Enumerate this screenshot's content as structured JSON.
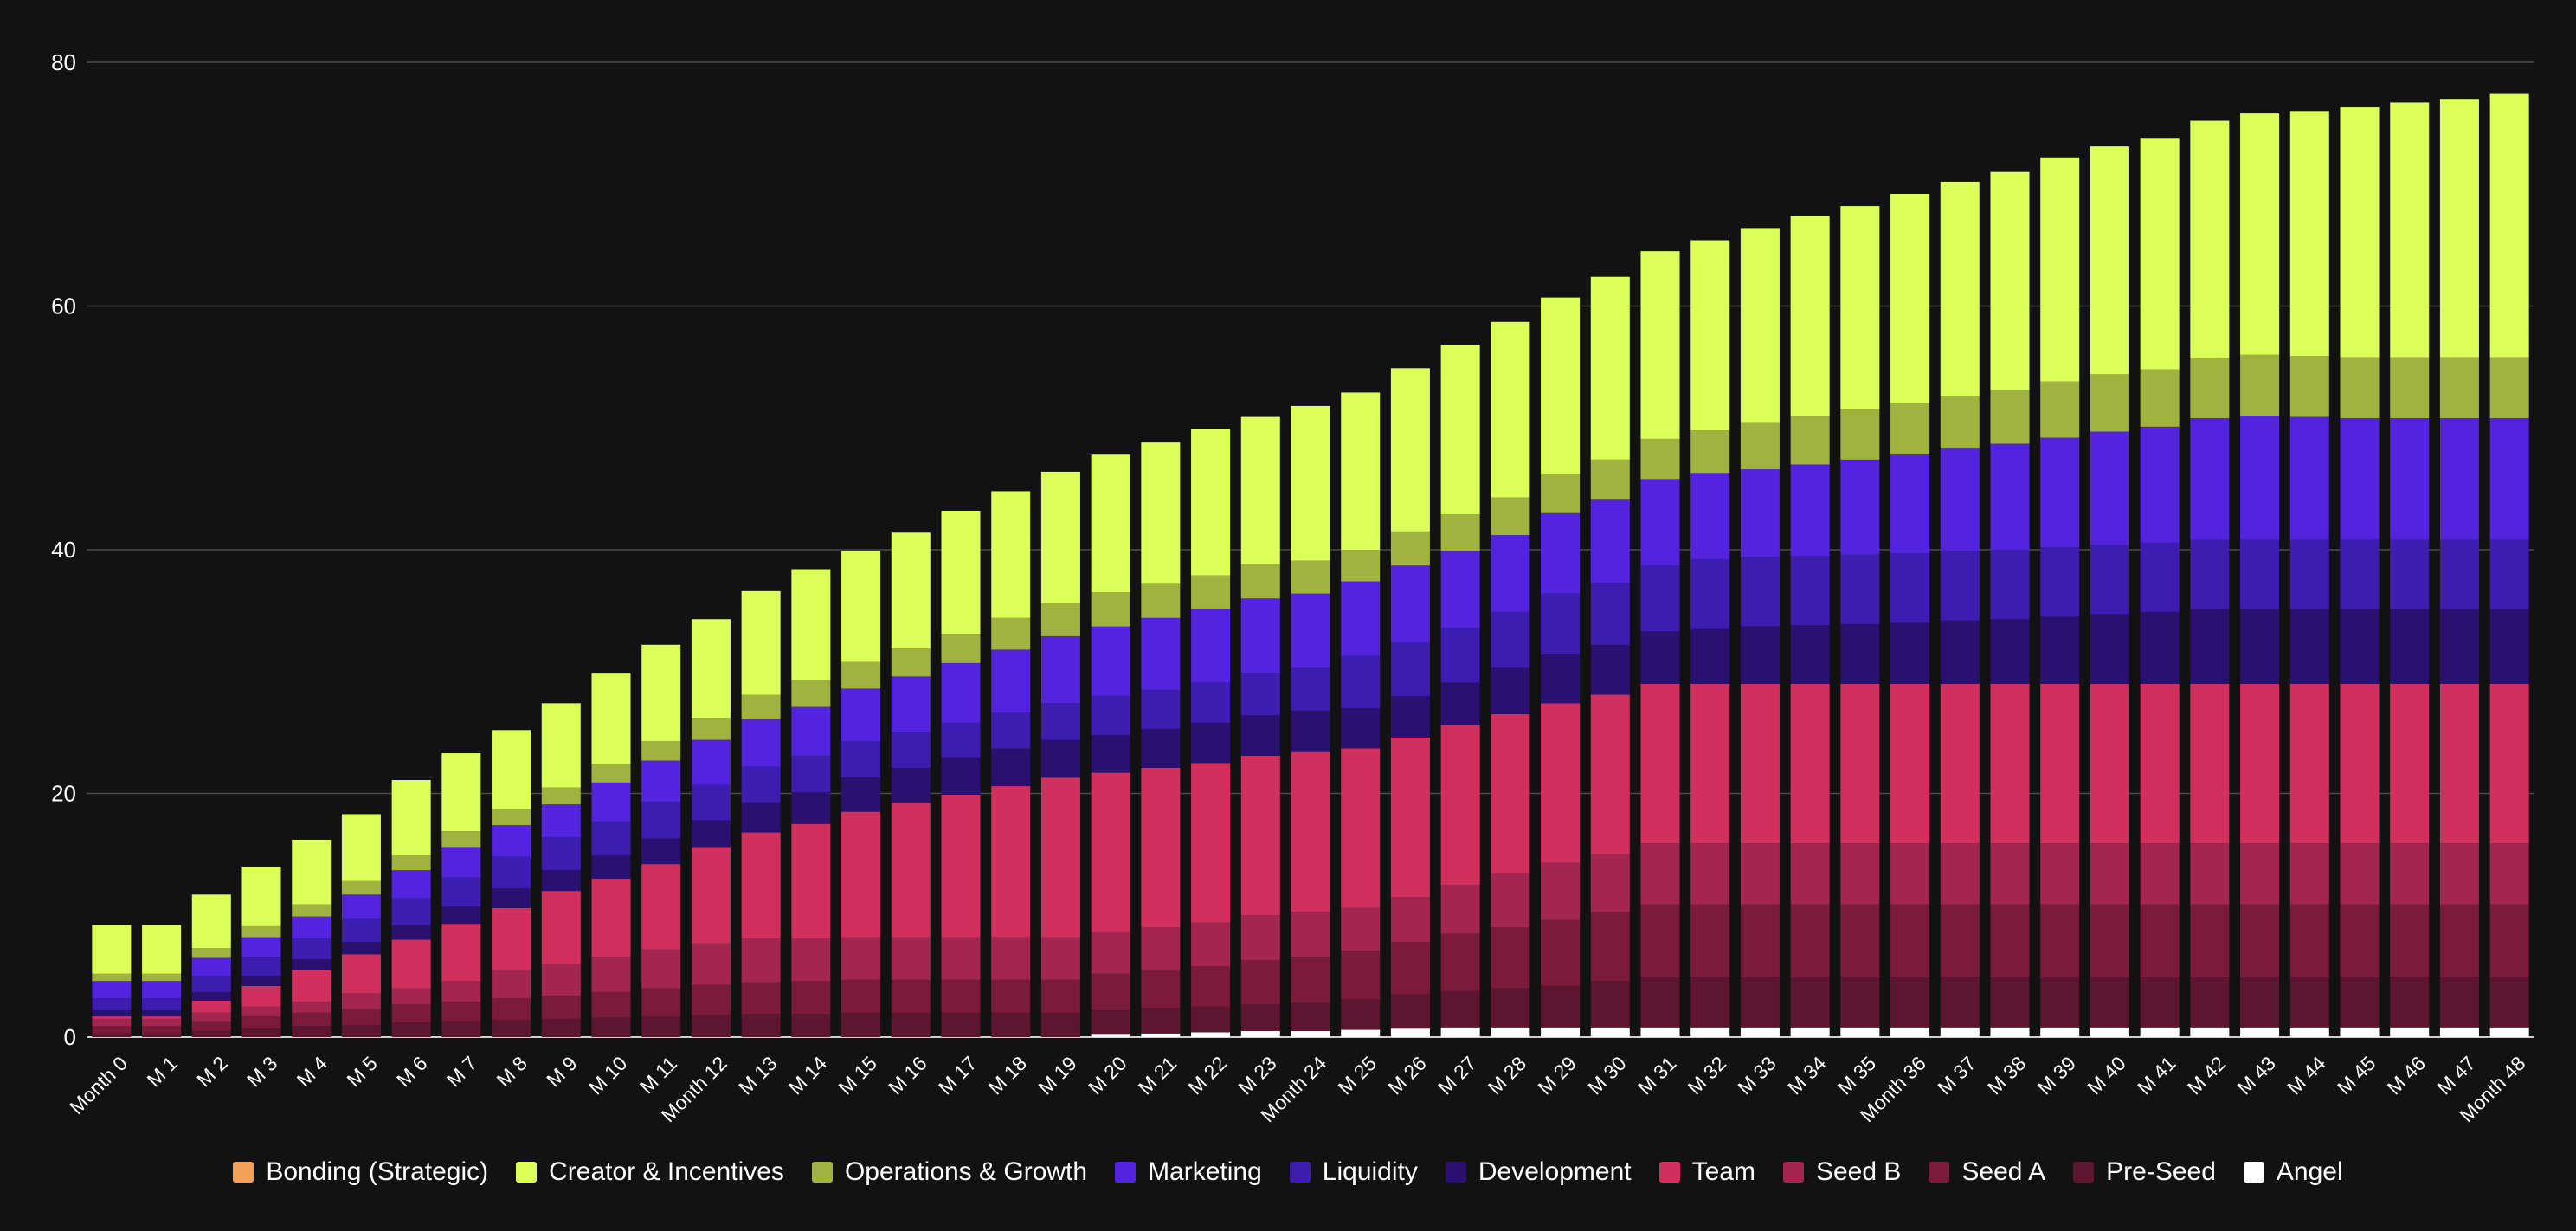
{
  "chart_data": {
    "type": "bar",
    "stacked": true,
    "title": "",
    "xlabel": "",
    "ylabel": "",
    "ylim": [
      0,
      80
    ],
    "yticks": [
      0,
      20,
      40,
      60,
      80
    ],
    "grid": true,
    "legend_placement": "bottom",
    "categories": [
      "Month 0",
      "M 1",
      "M 2",
      "M 3",
      "M 4",
      "M 5",
      "M 6",
      "M 7",
      "M 8",
      "M 9",
      "M 10",
      "M 11",
      "Month 12",
      "M 13",
      "M 14",
      "M 15",
      "M 16",
      "M 17",
      "M 18",
      "M 19",
      "M 20",
      "M 21",
      "M 22",
      "M 23",
      "Month 24",
      "M 25",
      "M 26",
      "M 27",
      "M 28",
      "M 29",
      "M 30",
      "M 31",
      "M 32",
      "M 33",
      "M 34",
      "M 35",
      "Month 36",
      "M 37",
      "M 38",
      "M 39",
      "M 40",
      "M 41",
      "M 42",
      "M 43",
      "M 44",
      "M 45",
      "M 46",
      "M 47",
      "Month 48"
    ],
    "series": [
      {
        "name": "Angel",
        "color": "#ffffff",
        "values": [
          0,
          0,
          0,
          0,
          0,
          0,
          0,
          0,
          0,
          0,
          0,
          0,
          0,
          0,
          0,
          0,
          0,
          0,
          0,
          0,
          0.2,
          0.3,
          0.4,
          0.5,
          0.5,
          0.6,
          0.7,
          0.8,
          0.8,
          0.8,
          0.8,
          0.8,
          0.8,
          0.8,
          0.8,
          0.8,
          0.8,
          0.8,
          0.8,
          0.8,
          0.8,
          0.8,
          0.8,
          0.8,
          0.8,
          0.8,
          0.8,
          0.8,
          0.8
        ]
      },
      {
        "name": "Pre-Seed",
        "color": "#5e1530",
        "values": [
          0.3,
          0.3,
          0.5,
          0.7,
          0.9,
          1.0,
          1.2,
          1.3,
          1.4,
          1.5,
          1.6,
          1.7,
          1.8,
          1.9,
          1.9,
          2.0,
          2.0,
          2.0,
          2.0,
          2.0,
          2.0,
          2.1,
          2.1,
          2.2,
          2.3,
          2.5,
          2.8,
          3.0,
          3.2,
          3.4,
          3.8,
          4.1,
          4.1,
          4.1,
          4.1,
          4.1,
          4.1,
          4.1,
          4.1,
          4.1,
          4.1,
          4.1,
          4.1,
          4.1,
          4.1,
          4.1,
          4.1,
          4.1,
          4.1
        ]
      },
      {
        "name": "Seed A",
        "color": "#7a1b3b",
        "values": [
          0.6,
          0.6,
          0.8,
          1.0,
          1.1,
          1.3,
          1.5,
          1.6,
          1.8,
          1.9,
          2.1,
          2.3,
          2.5,
          2.6,
          2.7,
          2.7,
          2.7,
          2.7,
          2.7,
          2.7,
          3.0,
          3.1,
          3.3,
          3.6,
          3.8,
          4.0,
          4.3,
          4.7,
          5.0,
          5.4,
          5.7,
          6.0,
          6.0,
          6.0,
          6.0,
          6.0,
          6.0,
          6.0,
          6.0,
          6.0,
          6.0,
          6.0,
          6.0,
          6.0,
          6.0,
          6.0,
          6.0,
          6.0,
          6.0
        ]
      },
      {
        "name": "Seed B",
        "color": "#a32650",
        "values": [
          0.6,
          0.6,
          0.7,
          0.8,
          0.9,
          1.3,
          1.3,
          1.7,
          2.3,
          2.6,
          2.9,
          3.2,
          3.4,
          3.6,
          3.5,
          3.5,
          3.5,
          3.5,
          3.5,
          3.5,
          3.4,
          3.5,
          3.6,
          3.7,
          3.7,
          3.5,
          3.7,
          4.0,
          4.4,
          4.7,
          4.7,
          5.0,
          5.0,
          5.0,
          5.0,
          5.0,
          5.0,
          5.0,
          5.0,
          5.0,
          5.0,
          5.0,
          5.0,
          5.0,
          5.0,
          5.0,
          5.0,
          5.0,
          5.0
        ]
      },
      {
        "name": "Team",
        "color": "#d1305e",
        "values": [
          0.2,
          0.2,
          1.0,
          1.7,
          2.6,
          3.2,
          4.0,
          4.7,
          5.1,
          6.0,
          6.4,
          7.0,
          7.9,
          8.7,
          9.4,
          10.3,
          11.0,
          11.7,
          12.4,
          13.1,
          13.1,
          13.1,
          13.1,
          13.1,
          13.1,
          13.1,
          13.1,
          13.1,
          13.1,
          13.1,
          13.1,
          13.1,
          13.1,
          13.1,
          13.1,
          13.1,
          13.1,
          13.1,
          13.1,
          13.1,
          13.1,
          13.1,
          13.1,
          13.1,
          13.1,
          13.1,
          13.1,
          13.1,
          13.1
        ]
      },
      {
        "name": "Development",
        "color": "#2a1070",
        "values": [
          0.5,
          0.5,
          0.7,
          0.8,
          0.9,
          1.0,
          1.2,
          1.4,
          1.6,
          1.7,
          1.9,
          2.1,
          2.2,
          2.4,
          2.6,
          2.8,
          2.9,
          3.0,
          3.1,
          3.1,
          3.1,
          3.2,
          3.3,
          3.3,
          3.4,
          3.3,
          3.4,
          3.5,
          3.8,
          4.0,
          4.1,
          4.3,
          4.5,
          4.7,
          4.8,
          4.9,
          5.0,
          5.2,
          5.3,
          5.5,
          5.7,
          5.9,
          6.1,
          6.1,
          6.1,
          6.1,
          6.1,
          6.1,
          6.1
        ]
      },
      {
        "name": "Liquidity",
        "color": "#3d1db0",
        "values": [
          1.0,
          1.0,
          1.3,
          1.6,
          1.7,
          1.9,
          2.2,
          2.4,
          2.6,
          2.7,
          2.8,
          3.0,
          2.9,
          3.0,
          3.0,
          3.0,
          2.9,
          2.9,
          2.9,
          3.0,
          3.2,
          3.2,
          3.3,
          3.5,
          3.5,
          4.3,
          4.4,
          4.5,
          4.6,
          5.0,
          5.1,
          5.4,
          5.7,
          5.7,
          5.7,
          5.7,
          5.7,
          5.7,
          5.7,
          5.7,
          5.7,
          5.7,
          5.7,
          5.7,
          5.7,
          5.7,
          5.7,
          5.7,
          5.7
        ]
      },
      {
        "name": "Marketing",
        "color": "#5324de",
        "values": [
          1.4,
          1.4,
          1.5,
          1.6,
          1.8,
          2.0,
          2.3,
          2.5,
          2.6,
          2.7,
          3.2,
          3.4,
          3.7,
          3.9,
          4.0,
          4.3,
          4.6,
          4.9,
          5.2,
          5.5,
          5.7,
          5.9,
          6.0,
          6.1,
          6.1,
          6.1,
          6.3,
          6.3,
          6.3,
          6.6,
          6.8,
          7.1,
          7.1,
          7.2,
          7.5,
          7.8,
          8.1,
          8.4,
          8.7,
          9.0,
          9.3,
          9.5,
          10.0,
          10.2,
          10.1,
          10.0,
          10.0,
          10.0,
          10.0
        ]
      },
      {
        "name": "Operations & Growth",
        "color": "#a1b33f",
        "values": [
          0.6,
          0.6,
          0.8,
          0.9,
          1.0,
          1.1,
          1.2,
          1.3,
          1.3,
          1.4,
          1.5,
          1.6,
          1.8,
          2.0,
          2.2,
          2.2,
          2.3,
          2.4,
          2.6,
          2.7,
          2.8,
          2.8,
          2.8,
          2.8,
          2.7,
          2.6,
          2.8,
          3.0,
          3.1,
          3.2,
          3.3,
          3.3,
          3.5,
          3.8,
          4.0,
          4.1,
          4.2,
          4.3,
          4.4,
          4.6,
          4.7,
          4.7,
          4.9,
          5.0,
          5.0,
          5.0,
          5.0,
          5.0,
          5.0
        ]
      },
      {
        "name": "Creator & Incentives",
        "color": "#dcff5a",
        "values": [
          4.0,
          4.0,
          4.4,
          4.9,
          5.3,
          5.5,
          6.2,
          6.4,
          6.5,
          6.9,
          7.5,
          7.9,
          8.1,
          8.5,
          9.1,
          9.1,
          9.5,
          10.1,
          10.4,
          10.8,
          11.3,
          11.6,
          12.0,
          12.1,
          12.7,
          12.9,
          13.4,
          13.9,
          14.4,
          14.5,
          15.0,
          15.4,
          15.6,
          16.0,
          16.4,
          16.7,
          17.2,
          17.6,
          17.9,
          18.4,
          18.7,
          19.0,
          19.5,
          19.8,
          20.1,
          20.5,
          20.9,
          21.2,
          21.6
        ]
      },
      {
        "name": "Bonding (Strategic)",
        "color": "#f2a05a",
        "values": [
          0,
          0,
          0,
          0,
          0,
          0,
          0,
          0,
          0,
          0,
          0,
          0,
          0,
          0,
          0,
          0,
          0,
          0,
          0,
          0,
          0,
          0,
          0,
          0,
          0,
          0,
          0,
          0,
          0,
          0,
          0,
          0,
          0,
          0,
          0,
          0,
          0,
          0,
          0,
          0,
          0,
          0,
          0,
          0,
          0,
          0,
          0,
          0,
          0
        ]
      }
    ],
    "legend_order": [
      "Bonding (Strategic)",
      "Creator & Incentives",
      "Operations & Growth",
      "Marketing",
      "Liquidity",
      "Development",
      "Team",
      "Seed B",
      "Seed A",
      "Pre-Seed",
      "Angel"
    ]
  }
}
